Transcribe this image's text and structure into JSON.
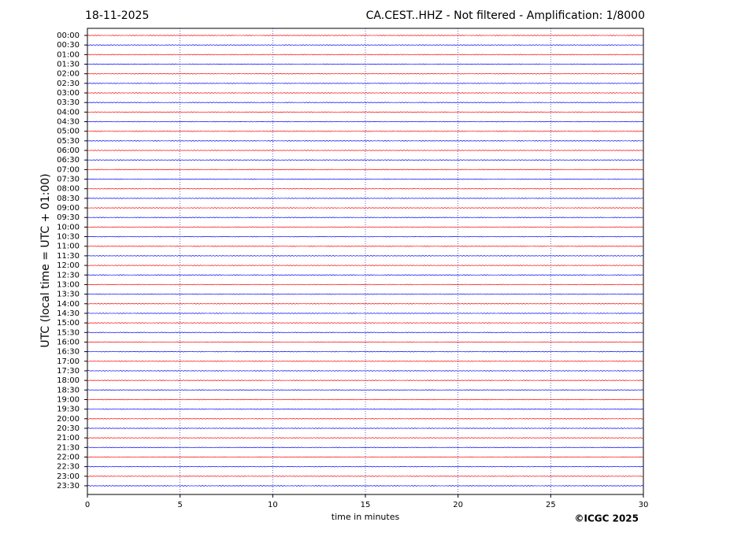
{
  "chart_data": {
    "type": "helicorder",
    "title": "18-11-2025",
    "subtitle": "CA.CEST..HHZ - Not filtered - Amplification: 1/8000",
    "y_label": "UTC (local time = UTC + 01:00)",
    "x_label": "time in minutes",
    "credit": "©ICGC 2025",
    "categories": [
      "00:00",
      "00:30",
      "01:00",
      "01:30",
      "02:00",
      "02:30",
      "03:00",
      "03:30",
      "04:00",
      "04:30",
      "05:00",
      "05:30",
      "06:00",
      "06:30",
      "07:00",
      "07:30",
      "08:00",
      "08:30",
      "09:00",
      "09:30",
      "10:00",
      "10:30",
      "11:00",
      "11:30",
      "12:00",
      "12:30",
      "13:00",
      "13:30",
      "14:00",
      "14:30",
      "15:00",
      "15:30",
      "16:00",
      "16:30",
      "17:00",
      "17:30",
      "18:00",
      "18:30",
      "19:00",
      "19:30",
      "20:00",
      "20:30",
      "21:00",
      "21:30",
      "22:00",
      "22:30",
      "23:00",
      "23:30"
    ],
    "colors": [
      "#ff0000",
      "#0000ff"
    ],
    "xlim": [
      0,
      30
    ],
    "xticks": [
      0,
      5,
      10,
      15,
      20,
      25,
      30
    ],
    "grid": true
  }
}
